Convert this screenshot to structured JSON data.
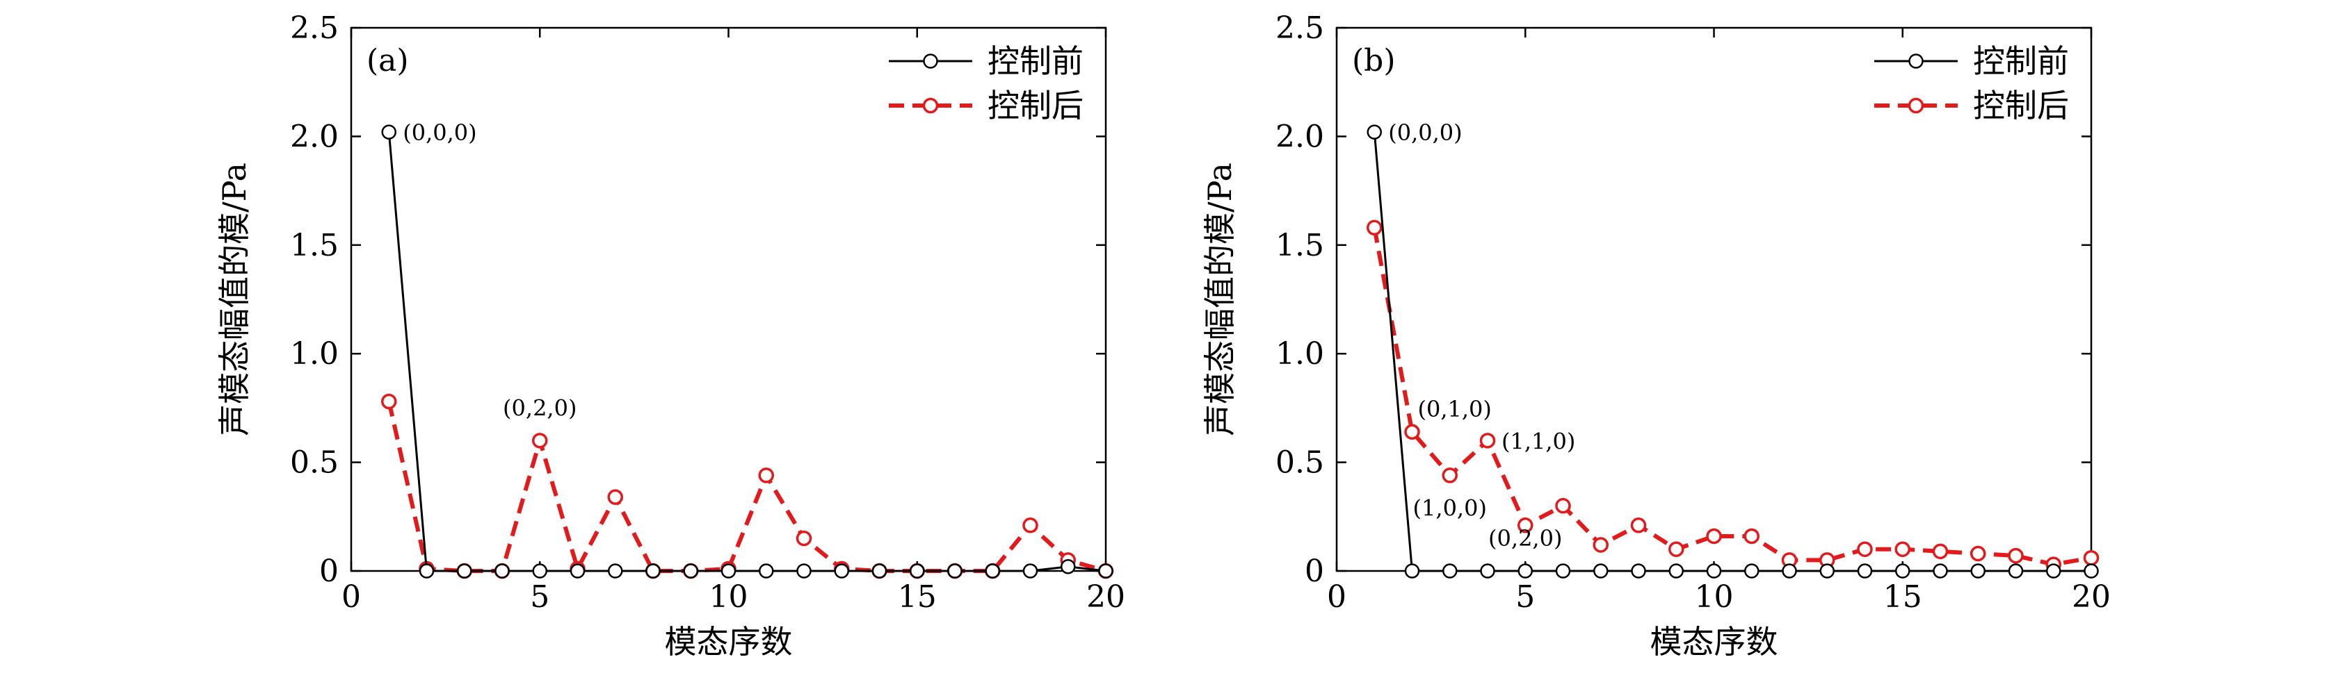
{
  "chart_data": [
    {
      "type": "line",
      "panel_label": "(a)",
      "xlabel": "模态序数",
      "ylabel": "声模态幅值的模/Pa",
      "xlim": [
        0,
        20
      ],
      "ylim": [
        0,
        2.5
      ],
      "xticks": [
        "0",
        "5",
        "10",
        "15",
        "20"
      ],
      "yticks": [
        "0",
        "0.5",
        "1.0",
        "1.5",
        "2.0",
        "2.5"
      ],
      "legend_position": "top-right",
      "series": [
        {
          "name": "控制前",
          "color": "#000000",
          "style": "solid",
          "x": [
            1,
            2,
            3,
            4,
            5,
            6,
            7,
            8,
            9,
            10,
            11,
            12,
            13,
            14,
            15,
            16,
            17,
            18,
            19,
            20
          ],
          "y": [
            2.02,
            0,
            0,
            0,
            0,
            0,
            0,
            0,
            0,
            0,
            0,
            0,
            0,
            0,
            0,
            0,
            0,
            0,
            0.02,
            0
          ]
        },
        {
          "name": "控制后",
          "color": "#e31a1c",
          "style": "dashed",
          "x": [
            1,
            2,
            3,
            4,
            5,
            6,
            7,
            8,
            9,
            10,
            11,
            12,
            13,
            14,
            15,
            16,
            17,
            18,
            19,
            20
          ],
          "y": [
            0.78,
            0.01,
            0,
            0,
            0.6,
            0.01,
            0.34,
            0,
            0,
            0.01,
            0.44,
            0.15,
            0.01,
            0,
            0,
            0,
            0,
            0.21,
            0.05,
            0
          ]
        }
      ],
      "annotations": [
        {
          "text": "(0,0,0)",
          "x": 1,
          "y": 2.02,
          "anchor": "right"
        },
        {
          "text": "(0,2,0)",
          "x": 5,
          "y": 0.6,
          "anchor": "above"
        }
      ]
    },
    {
      "type": "line",
      "panel_label": "(b)",
      "xlabel": "模态序数",
      "ylabel": "声模态幅值的模/Pa",
      "xlim": [
        0,
        20
      ],
      "ylim": [
        0,
        2.5
      ],
      "xticks": [
        "0",
        "5",
        "10",
        "15",
        "20"
      ],
      "yticks": [
        "0",
        "0.5",
        "1.0",
        "1.5",
        "2.0",
        "2.5"
      ],
      "legend_position": "top-right",
      "series": [
        {
          "name": "控制前",
          "color": "#000000",
          "style": "solid",
          "x": [
            1,
            2,
            3,
            4,
            5,
            6,
            7,
            8,
            9,
            10,
            11,
            12,
            13,
            14,
            15,
            16,
            17,
            18,
            19,
            20
          ],
          "y": [
            2.02,
            0,
            0,
            0,
            0,
            0,
            0,
            0,
            0,
            0,
            0,
            0,
            0,
            0,
            0,
            0,
            0,
            0,
            0,
            0
          ]
        },
        {
          "name": "控制后",
          "color": "#e31a1c",
          "style": "dashed",
          "x": [
            1,
            2,
            3,
            4,
            5,
            6,
            7,
            8,
            9,
            10,
            11,
            12,
            13,
            14,
            15,
            16,
            17,
            18,
            19,
            20
          ],
          "y": [
            1.58,
            0.64,
            0.44,
            0.6,
            0.21,
            0.3,
            0.12,
            0.21,
            0.1,
            0.16,
            0.16,
            0.05,
            0.05,
            0.1,
            0.1,
            0.09,
            0.08,
            0.07,
            0.03,
            0.06
          ]
        }
      ],
      "annotations": [
        {
          "text": "(0,0,0)",
          "x": 1,
          "y": 2.02,
          "anchor": "right"
        },
        {
          "text": "(0,1,0)",
          "x": 2,
          "y": 0.64,
          "anchor": "above-right"
        },
        {
          "text": "(1,1,0)",
          "x": 4,
          "y": 0.6,
          "anchor": "right"
        },
        {
          "text": "(1,0,0)",
          "x": 3,
          "y": 0.44,
          "anchor": "below"
        },
        {
          "text": "(0,2,0)",
          "x": 5,
          "y": 0,
          "anchor": "above"
        }
      ]
    }
  ]
}
